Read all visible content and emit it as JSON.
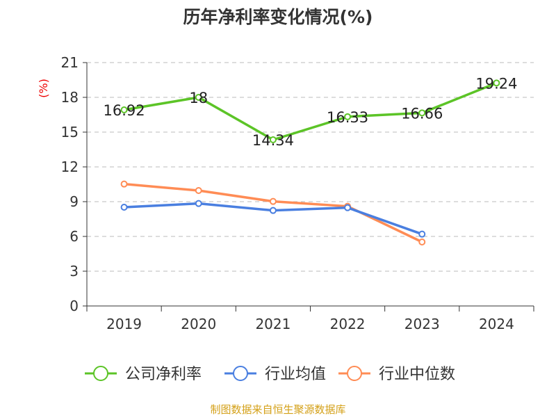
{
  "chart_data": {
    "type": "line",
    "title": "历年净利率变化情况(%)",
    "ylabel": "(%)",
    "categories": [
      "2019",
      "2020",
      "2021",
      "2022",
      "2023",
      "2024"
    ],
    "ylim": [
      0,
      21
    ],
    "yticks": [
      0,
      3,
      6,
      9,
      12,
      15,
      18,
      21
    ],
    "grid": true,
    "legend_position": "bottom",
    "series": [
      {
        "name": "公司净利率",
        "color": "#5cc427",
        "values": [
          16.92,
          18,
          14.34,
          16.33,
          16.66,
          19.24
        ],
        "labels": [
          "16.92",
          "18",
          "14.34",
          "16.33",
          "16.66",
          "19.24"
        ]
      },
      {
        "name": "行业均值",
        "color": "#4a7fe0",
        "values": [
          8.52,
          8.84,
          8.24,
          8.48,
          6.2,
          null
        ]
      },
      {
        "name": "行业中位数",
        "color": "#ff8c55",
        "values": [
          10.52,
          9.96,
          9.02,
          8.6,
          5.52,
          null
        ]
      }
    ]
  },
  "source": "制图数据来自恒生聚源数据库"
}
